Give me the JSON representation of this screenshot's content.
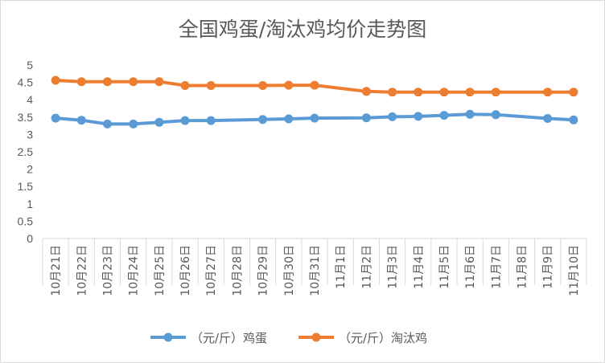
{
  "chart_data": {
    "type": "line",
    "title": "全国鸡蛋/淘汰鸡均价走势图",
    "xlabel": "",
    "ylabel": "",
    "ylim": [
      0,
      5
    ],
    "yticks": [
      "0",
      "0.5",
      "1",
      "1.5",
      "2",
      "2.5",
      "3",
      "3.5",
      "4",
      "4.5",
      "5"
    ],
    "grid": false,
    "legend_position": "bottom",
    "categories": [
      "10月21日",
      "10月22日",
      "10月23日",
      "10月24日",
      "10月25日",
      "10月26日",
      "10月27日",
      "10月28日",
      "10月29日",
      "10月30日",
      "10月31日",
      "11月1日",
      "11月2日",
      "11月3日",
      "11月4日",
      "11月5日",
      "11月6日",
      "11月7日",
      "11月8日",
      "11月9日",
      "11月10日"
    ],
    "series": [
      {
        "name": "（元/斤）鸡蛋",
        "color": "#5b9bd5",
        "values": [
          3.47,
          3.41,
          3.3,
          3.3,
          3.35,
          3.4,
          3.4,
          null,
          3.43,
          3.45,
          3.47,
          null,
          3.48,
          3.51,
          3.52,
          3.55,
          3.58,
          3.57,
          null,
          3.46,
          3.42
        ]
      },
      {
        "name": "（元/斤）淘汰鸡",
        "color": "#ed7d31",
        "values": [
          4.56,
          4.52,
          4.52,
          4.52,
          4.52,
          4.41,
          4.41,
          null,
          4.41,
          4.42,
          4.42,
          null,
          4.24,
          4.22,
          4.22,
          4.22,
          4.22,
          4.22,
          null,
          4.22,
          4.22
        ]
      }
    ]
  }
}
